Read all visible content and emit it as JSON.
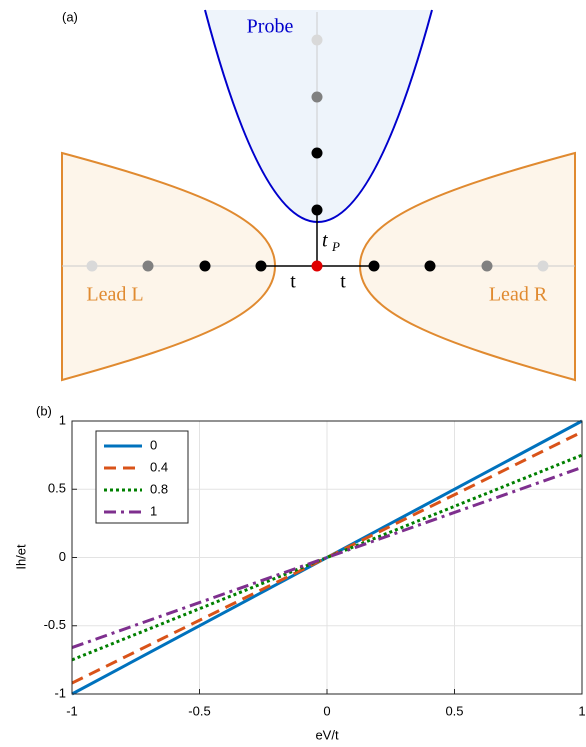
{
  "panel_a": {
    "label": "(a)",
    "probe": "Probe",
    "lead_left": "Lead L",
    "lead_right": "Lead R",
    "hop_left": "t",
    "hop_right": "t",
    "probe_hop": "t",
    "probe_hop_subscript": "P"
  },
  "chart_data": {
    "type": "line",
    "label": "(b)",
    "x_label": "eV/t",
    "y_label": "Ih/et",
    "xlim": [
      -1,
      1
    ],
    "ylim": [
      -1,
      1
    ],
    "xticks": [
      -1,
      -0.5,
      0,
      0.5,
      1
    ],
    "yticks": [
      -1,
      -0.5,
      0,
      0.5,
      1
    ],
    "grid": true,
    "legend": "upper left",
    "x": [
      -1,
      1
    ],
    "series": [
      {
        "name": "0",
        "color": "#0072bd",
        "style": "solid",
        "values": [
          -1,
          1
        ]
      },
      {
        "name": "0.4",
        "color": "#d95319",
        "style": "dashed",
        "values": [
          -0.92,
          0.92
        ]
      },
      {
        "name": "0.8",
        "color": "#008000",
        "style": "dotted",
        "values": [
          -0.75,
          0.75
        ]
      },
      {
        "name": "1",
        "color": "#7e2f8e",
        "style": "dashdot",
        "values": [
          -0.66,
          0.66
        ]
      }
    ]
  }
}
